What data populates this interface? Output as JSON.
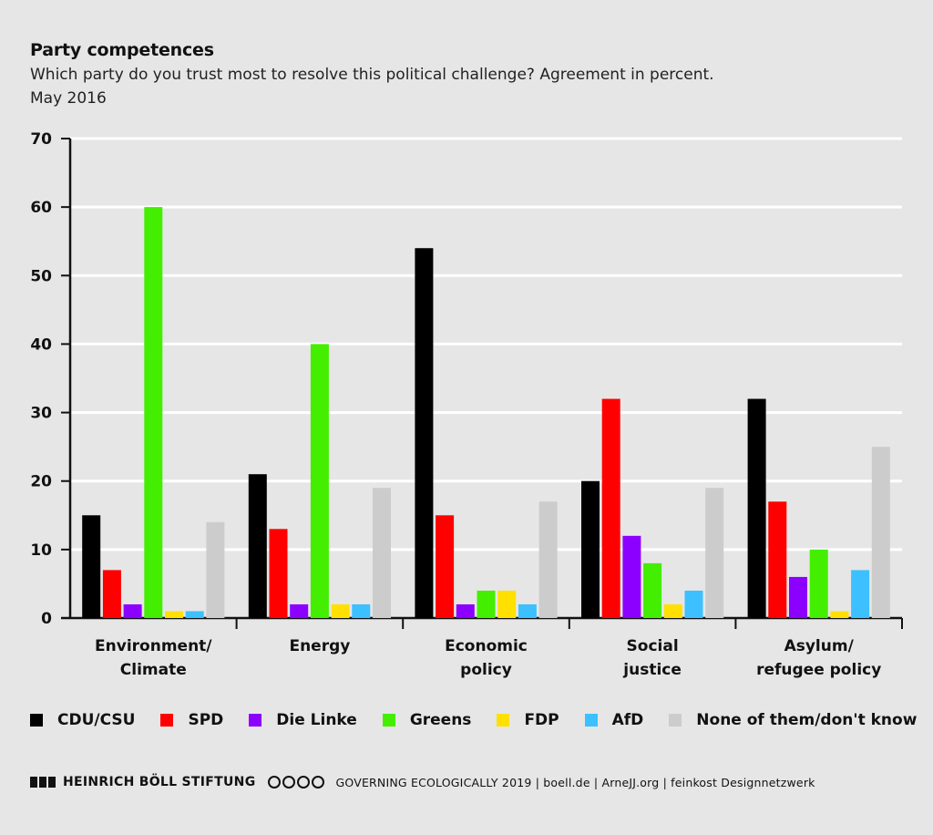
{
  "chart_data": {
    "type": "bar",
    "title": "Party competences",
    "subtitle": "Which party do you trust most to resolve this political challenge? Agreement in percent.",
    "date": "May 2016",
    "categories": [
      [
        "Environment/",
        "Climate"
      ],
      [
        "Energy"
      ],
      [
        "Economic",
        "policy"
      ],
      [
        "Social",
        "justice"
      ],
      [
        "Asylum/",
        "refugee policy"
      ]
    ],
    "series": [
      {
        "name": "CDU/CSU",
        "color": "#000000",
        "values": [
          15,
          21,
          54,
          20,
          32
        ]
      },
      {
        "name": "SPD",
        "color": "#ff0000",
        "values": [
          7,
          13,
          15,
          32,
          17
        ]
      },
      {
        "name": "Die Linke",
        "color": "#8c00ff",
        "values": [
          2,
          2,
          2,
          12,
          6
        ]
      },
      {
        "name": "Greens",
        "color": "#44ee00",
        "values": [
          60,
          40,
          4,
          8,
          10
        ]
      },
      {
        "name": "FDP",
        "color": "#ffe000",
        "values": [
          1,
          2,
          4,
          2,
          1
        ]
      },
      {
        "name": "AfD",
        "color": "#3cc0ff",
        "values": [
          1,
          2,
          2,
          4,
          7
        ]
      },
      {
        "name": "None of them/don't know",
        "color": "#cccccc",
        "values": [
          14,
          19,
          17,
          19,
          25
        ]
      }
    ],
    "ylim": [
      0,
      70
    ],
    "yticks": [
      0,
      10,
      20,
      30,
      40,
      50,
      60,
      70
    ],
    "grid": true,
    "legend_position": "bottom"
  },
  "footer": {
    "foundation": "HEINRICH BÖLL STIFTUNG",
    "credits": "GOVERNING ECOLOGICALLY 2019 | boell.de | ArneJJ.org | feinkost Designnetzwerk"
  }
}
